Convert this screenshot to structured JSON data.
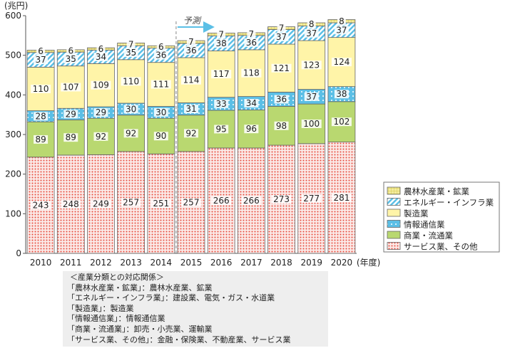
{
  "chart_data": {
    "type": "bar",
    "stacked": true,
    "unit_label": "(兆円)",
    "xlabel_suffix": "(年度)",
    "forecast_label": "予測",
    "forecast_from": "2015",
    "categories": [
      "2010",
      "2011",
      "2012",
      "2013",
      "2014",
      "2015",
      "2016",
      "2017",
      "2018",
      "2019",
      "2020"
    ],
    "ylim": [
      0,
      600
    ],
    "yticks": [
      0,
      100,
      200,
      300,
      400,
      500,
      600
    ],
    "series": [
      {
        "name": "サービス業、その他",
        "values": [
          243,
          248,
          249,
          257,
          251,
          257,
          266,
          266,
          273,
          277,
          281
        ],
        "color": "#e8493c",
        "pattern": "dots-red"
      },
      {
        "name": "商業・流通業",
        "values": [
          89,
          89,
          92,
          92,
          90,
          92,
          95,
          96,
          98,
          100,
          102
        ],
        "color": "#b5d66a",
        "pattern": "solid-green"
      },
      {
        "name": "情報通信業",
        "values": [
          28,
          29,
          29,
          30,
          30,
          31,
          33,
          34,
          36,
          37,
          38
        ],
        "color": "#5bc0e6",
        "pattern": "dots-blue"
      },
      {
        "name": "製造業",
        "values": [
          110,
          107,
          109,
          110,
          111,
          114,
          117,
          118,
          121,
          123,
          124
        ],
        "color": "#fff3a6",
        "pattern": "solid-yellow"
      },
      {
        "name": "エネルギー・インフラ業",
        "values": [
          37,
          35,
          34,
          35,
          36,
          36,
          38,
          36,
          37,
          37,
          37
        ],
        "color": "#5bc0e6",
        "pattern": "stripe-blue"
      },
      {
        "name": "農林水産業・鉱業",
        "values": [
          6,
          6,
          6,
          7,
          6,
          7,
          7,
          7,
          7,
          8,
          8
        ],
        "color": "#e8e07a",
        "pattern": "grid-yellow"
      }
    ],
    "legend_position": "right",
    "grid": false
  },
  "note": {
    "title": "＜産業分類との対応関係＞",
    "lines": [
      "「農林水産業・鉱業」：農林水産業、鉱業",
      "「エネルギー・インフラ業」：建設業、電気・ガス・水道業",
      "「製造業」：製造業",
      "「情報通信業」：情報通信業",
      "「商業・流通業」：卸売・小売業、運輸業",
      "「サービス業、その他」：金融・保険業、不動産業、サービス業"
    ]
  }
}
